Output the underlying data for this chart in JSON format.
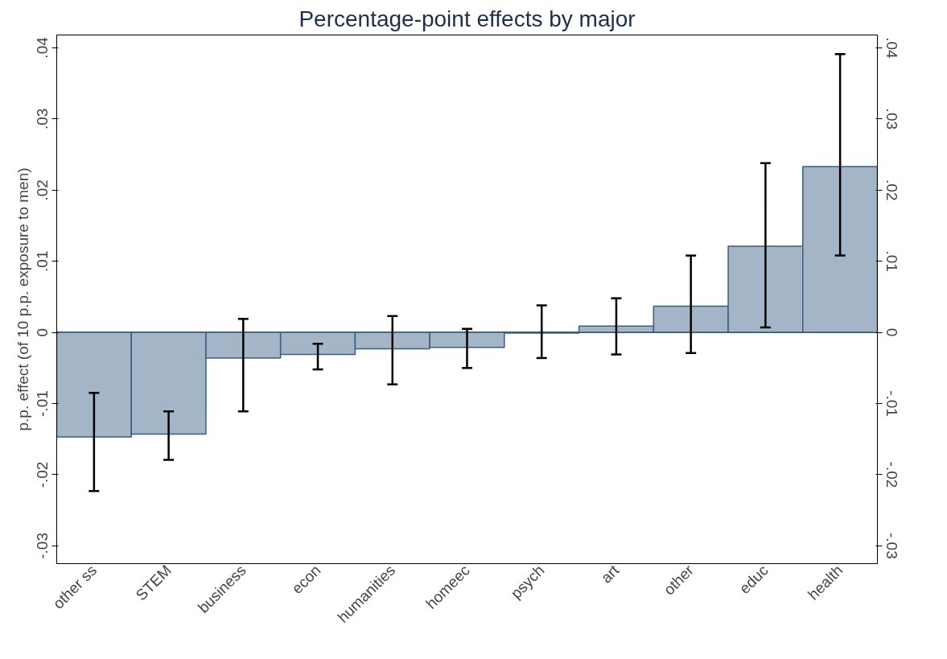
{
  "chart_data": {
    "type": "bar",
    "title": "Percentage-point effects by major",
    "ylabel": "p.p. effect (of 10 p.p. exposure to men)",
    "categories": [
      "other ss",
      "STEM",
      "business",
      "econ",
      "humanities",
      "homeec",
      "psych",
      "art",
      "other",
      "educ",
      "health"
    ],
    "series": [
      {
        "color": "#a3b5c7",
        "values": [
          -0.0147,
          -0.0143,
          -0.0036,
          -0.0031,
          -0.0023,
          -0.0021,
          -0.0001,
          0.0009,
          0.0037,
          0.0121,
          0.0233
        ],
        "errors": [
          [
            -0.0223,
            -0.0085
          ],
          [
            -0.0179,
            -0.0111
          ],
          [
            -0.0111,
            0.0019
          ],
          [
            -0.0052,
            -0.0016
          ],
          [
            -0.0073,
            0.0023
          ],
          [
            -0.005,
            0.0005
          ],
          [
            -0.0036,
            0.0038
          ],
          [
            -0.0031,
            0.0048
          ],
          [
            -0.0029,
            0.0108
          ],
          [
            0.0007,
            0.0238
          ],
          [
            0.0108,
            0.0391
          ]
        ]
      }
    ],
    "ylim": [
      -0.0325,
      0.0418
    ],
    "yticks": [
      {
        "value": -0.03,
        "label": "-.03"
      },
      {
        "value": -0.02,
        "label": "-.02"
      },
      {
        "value": -0.01,
        "label": "-.01"
      },
      0,
      {
        "value": 0.01,
        "label": ".01"
      },
      {
        "value": 0.02,
        "label": ".02"
      },
      {
        "value": 0.03,
        "label": ".03"
      },
      {
        "value": 0.04,
        "label": ".04"
      }
    ],
    "y2lim": [
      -0.0325,
      0.0418
    ],
    "y2ticks": [
      {
        "value": -0.03,
        "label": "-.03"
      },
      {
        "value": -0.02,
        "label": "-.02"
      },
      {
        "value": -0.01,
        "label": "-.01"
      },
      0,
      {
        "value": 0.01,
        "label": ".01"
      },
      {
        "value": 0.02,
        "label": ".02"
      },
      {
        "value": 0.03,
        "label": ".03"
      },
      {
        "value": 0.04,
        "label": ".04"
      }
    ],
    "ref_lines": [
      {
        "axis": "y",
        "value": 0,
        "color": "#000000"
      }
    ],
    "grid": false
  }
}
